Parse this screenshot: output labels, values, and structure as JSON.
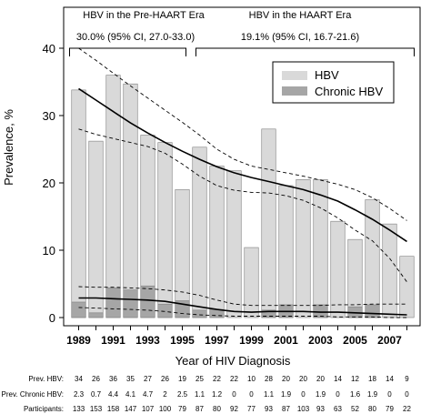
{
  "chart_data": {
    "type": "bar",
    "xlabel": "Year of HIV Diagnosis",
    "ylabel": "Prevalence, %",
    "ylim": [
      0,
      40
    ],
    "yticks": [
      0,
      10,
      20,
      30,
      40
    ],
    "xlim": [
      1988.5,
      2009.5
    ],
    "x_tick_labels": [
      "1989",
      "1991",
      "1993",
      "1995",
      "1997",
      "1999",
      "2001",
      "2003",
      "2005",
      "2007"
    ],
    "categories": [
      1989,
      1990,
      1991,
      1992,
      1993,
      1994,
      1995,
      1996,
      1997,
      1998,
      1999,
      2000,
      2001,
      2002,
      2003,
      2004,
      2005,
      2006,
      2007,
      2008
    ],
    "series": [
      {
        "name": "HBV",
        "color": "#d9d9d9",
        "values": [
          33.8,
          26.2,
          36.0,
          34.7,
          27.1,
          26.0,
          19.0,
          25.3,
          22.5,
          21.8,
          10.4,
          28.0,
          19.6,
          20.5,
          20.5,
          14.3,
          11.6,
          17.5,
          13.9,
          9.1
        ]
      },
      {
        "name": "Chronic HBV",
        "color": "#a6a6a6",
        "values": [
          2.3,
          0.7,
          4.4,
          4.1,
          4.7,
          2.0,
          2.5,
          1.1,
          1.2,
          0.0,
          0.0,
          1.1,
          1.9,
          0.0,
          1.9,
          0.0,
          1.6,
          1.9,
          0.0,
          0.0
        ]
      }
    ],
    "trend_hbv": {
      "x": [
        1989,
        1990,
        1991,
        1992,
        1993,
        1994,
        1995,
        1996,
        1997,
        1998,
        1999,
        2000,
        2001,
        2002,
        2003,
        2004,
        2005,
        2006,
        2007,
        2008
      ],
      "fit": [
        34.0,
        32.3,
        30.6,
        28.9,
        27.4,
        26.0,
        24.7,
        23.5,
        22.4,
        21.5,
        20.8,
        20.2,
        19.6,
        19.0,
        18.2,
        17.3,
        16.0,
        14.6,
        13.0,
        11.3
      ],
      "upper": [
        40.0,
        38.2,
        36.3,
        34.4,
        32.6,
        30.8,
        29.0,
        27.1,
        25.0,
        23.5,
        22.5,
        22.0,
        21.5,
        21.0,
        20.4,
        19.8,
        19.0,
        17.8,
        16.2,
        14.4
      ],
      "lower": [
        28.0,
        27.2,
        26.6,
        26.0,
        25.4,
        24.4,
        22.8,
        21.0,
        19.6,
        18.9,
        18.6,
        18.5,
        18.1,
        17.4,
        16.3,
        14.8,
        13.0,
        11.4,
        8.8,
        5.3
      ]
    },
    "trend_chronic": {
      "x": [
        1989,
        1990,
        1991,
        1992,
        1993,
        1994,
        1995,
        1996,
        1997,
        1998,
        1999,
        2000,
        2001,
        2002,
        2003,
        2004,
        2005,
        2006,
        2007,
        2008
      ],
      "fit": [
        2.9,
        2.9,
        2.8,
        2.7,
        2.6,
        2.4,
        2.0,
        1.6,
        1.2,
        0.9,
        0.8,
        0.9,
        0.9,
        0.9,
        0.8,
        0.8,
        0.7,
        0.6,
        0.5,
        0.4
      ],
      "upper": [
        4.6,
        4.5,
        4.5,
        4.4,
        4.3,
        4.1,
        3.8,
        3.3,
        2.6,
        2.0,
        1.8,
        1.8,
        1.8,
        1.8,
        1.8,
        1.9,
        1.9,
        2.0,
        2.0,
        2.0
      ],
      "lower": [
        1.5,
        1.4,
        1.3,
        1.2,
        1.1,
        0.9,
        0.6,
        0.4,
        0.3,
        0.2,
        0.2,
        0.2,
        0.2,
        0.2,
        0.2,
        0.1,
        0.1,
        0.1,
        0.0,
        0.0
      ]
    },
    "era_annotations": [
      {
        "title": "HBV in the Pre-HAART Era",
        "stat": "30.0% (95% CI, 27.0-33.0)",
        "years": [
          1989,
          1995
        ]
      },
      {
        "title": "HBV in the HAART Era",
        "stat": "19.1% (95% CI, 16.7-21.6)",
        "years": [
          1996,
          2008
        ]
      }
    ],
    "legend": {
      "position": "top-right",
      "entries": [
        "HBV",
        "Chronic HBV"
      ]
    },
    "table": {
      "rows": [
        {
          "label": "Prev. HBV:",
          "values": [
            "34",
            "26",
            "36",
            "35",
            "27",
            "26",
            "19",
            "25",
            "22",
            "22",
            "10",
            "28",
            "20",
            "20",
            "20",
            "14",
            "12",
            "18",
            "14",
            "9"
          ]
        },
        {
          "label": "Prev. Chronic HBV:",
          "values": [
            "2.3",
            "0.7",
            "4.4",
            "4.1",
            "4.7",
            "2",
            "2.5",
            "1.1",
            "1.2",
            "0",
            "0",
            "1.1",
            "1.9",
            "0",
            "1.9",
            "0",
            "1.6",
            "1.9",
            "0",
            "0"
          ]
        },
        {
          "label": "Participants:",
          "values": [
            "133",
            "153",
            "158",
            "147",
            "107",
            "100",
            "79",
            "87",
            "80",
            "92",
            "77",
            "93",
            "87",
            "103",
            "93",
            "63",
            "52",
            "80",
            "79",
            "22"
          ]
        }
      ]
    }
  }
}
